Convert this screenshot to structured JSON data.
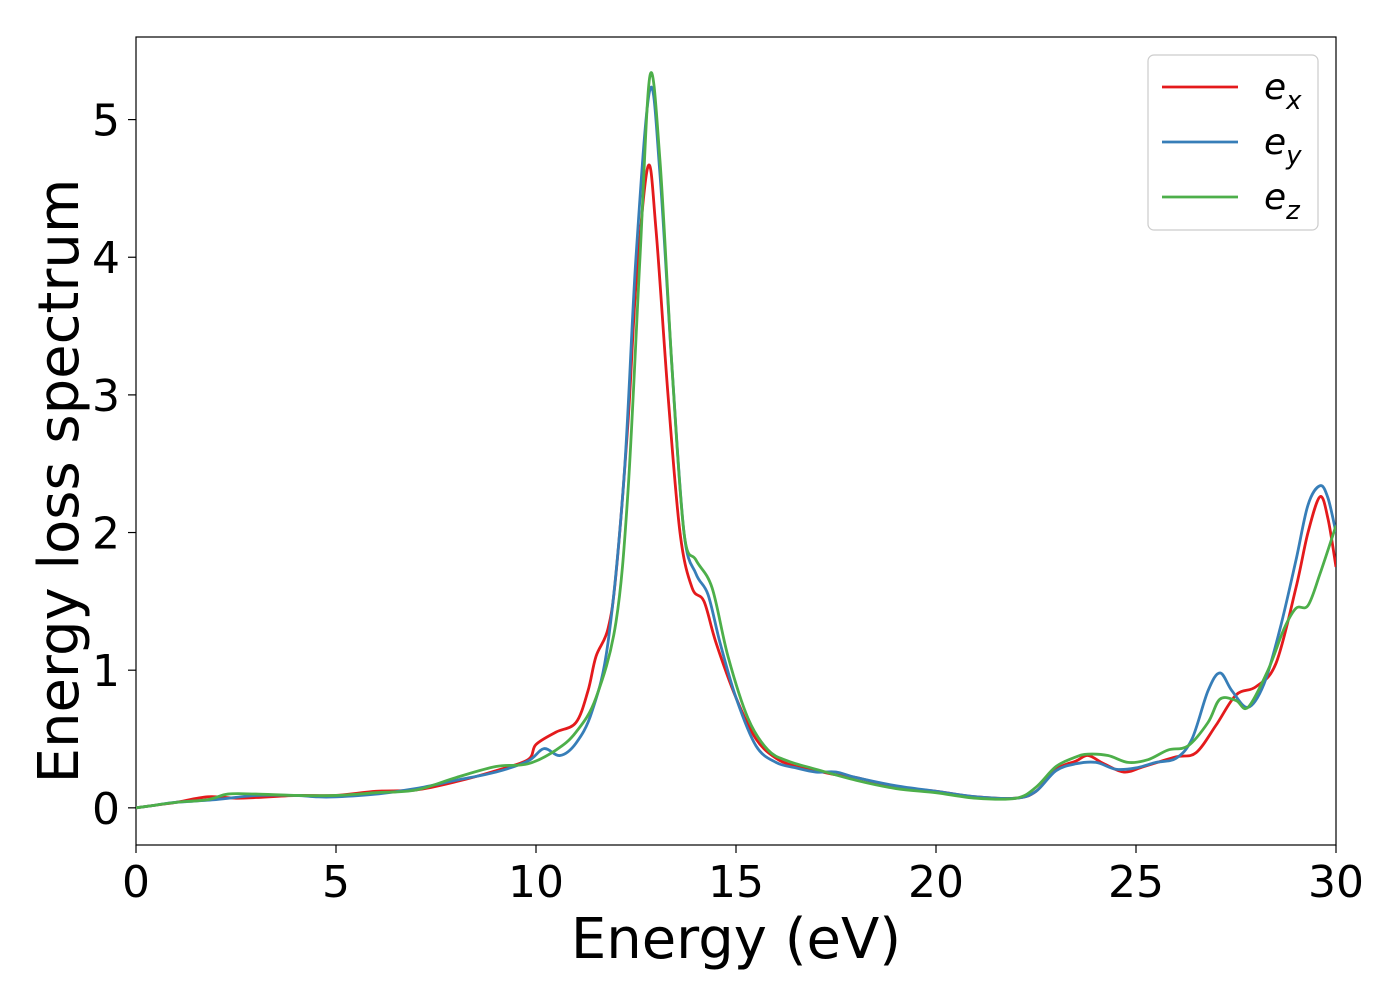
{
  "chart_data": {
    "type": "line",
    "title": "",
    "xlabel": "Energy (eV)",
    "ylabel": "Energy loss spectrum",
    "xlim": [
      0,
      30
    ],
    "ylim": [
      -0.27,
      5.6
    ],
    "xticks": [
      0,
      5,
      10,
      15,
      20,
      25,
      30
    ],
    "yticks": [
      0,
      1,
      2,
      3,
      4,
      5
    ],
    "grid": false,
    "legend_position": "top-right",
    "series": [
      {
        "name": "e",
        "sub": "x",
        "color": "#e41a1c",
        "points": [
          [
            0,
            0.0
          ],
          [
            0.5,
            0.02
          ],
          [
            1.0,
            0.04
          ],
          [
            1.8,
            0.08
          ],
          [
            2.5,
            0.07
          ],
          [
            3.0,
            0.075
          ],
          [
            4.0,
            0.09
          ],
          [
            5.0,
            0.09
          ],
          [
            6.0,
            0.12
          ],
          [
            7.0,
            0.13
          ],
          [
            8.0,
            0.19
          ],
          [
            9.0,
            0.27
          ],
          [
            9.8,
            0.35
          ],
          [
            10.0,
            0.46
          ],
          [
            10.5,
            0.55
          ],
          [
            11.0,
            0.62
          ],
          [
            11.3,
            0.85
          ],
          [
            11.5,
            1.1
          ],
          [
            11.8,
            1.3
          ],
          [
            12.0,
            1.7
          ],
          [
            12.3,
            2.8
          ],
          [
            12.5,
            3.8
          ],
          [
            12.8,
            4.66
          ],
          [
            13.0,
            4.2
          ],
          [
            13.3,
            3.0
          ],
          [
            13.6,
            2.0
          ],
          [
            13.9,
            1.6
          ],
          [
            14.2,
            1.5
          ],
          [
            14.5,
            1.2
          ],
          [
            15.0,
            0.8
          ],
          [
            15.5,
            0.5
          ],
          [
            16.0,
            0.36
          ],
          [
            16.5,
            0.3
          ],
          [
            17.0,
            0.27
          ],
          [
            17.5,
            0.24
          ],
          [
            18.0,
            0.22
          ],
          [
            19.0,
            0.15
          ],
          [
            20.0,
            0.12
          ],
          [
            21.0,
            0.08
          ],
          [
            22.0,
            0.07
          ],
          [
            22.5,
            0.12
          ],
          [
            23.0,
            0.28
          ],
          [
            23.5,
            0.34
          ],
          [
            23.8,
            0.38
          ],
          [
            24.2,
            0.32
          ],
          [
            24.7,
            0.26
          ],
          [
            25.2,
            0.3
          ],
          [
            26.0,
            0.37
          ],
          [
            26.5,
            0.4
          ],
          [
            27.0,
            0.6
          ],
          [
            27.5,
            0.82
          ],
          [
            28.0,
            0.88
          ],
          [
            28.5,
            1.05
          ],
          [
            29.0,
            1.6
          ],
          [
            29.3,
            2.0
          ],
          [
            29.6,
            2.26
          ],
          [
            29.8,
            2.1
          ],
          [
            30.0,
            1.75
          ]
        ]
      },
      {
        "name": "e",
        "sub": "y",
        "color": "#377eb8",
        "points": [
          [
            0,
            0.0
          ],
          [
            0.5,
            0.02
          ],
          [
            1.0,
            0.04
          ],
          [
            2.0,
            0.06
          ],
          [
            3.0,
            0.09
          ],
          [
            4.0,
            0.09
          ],
          [
            4.5,
            0.08
          ],
          [
            5.0,
            0.08
          ],
          [
            6.0,
            0.1
          ],
          [
            7.0,
            0.14
          ],
          [
            8.0,
            0.2
          ],
          [
            9.0,
            0.26
          ],
          [
            9.8,
            0.34
          ],
          [
            10.2,
            0.43
          ],
          [
            10.6,
            0.38
          ],
          [
            11.0,
            0.47
          ],
          [
            11.4,
            0.7
          ],
          [
            11.8,
            1.2
          ],
          [
            12.2,
            2.4
          ],
          [
            12.5,
            4.0
          ],
          [
            12.85,
            5.22
          ],
          [
            13.1,
            4.6
          ],
          [
            13.4,
            3.2
          ],
          [
            13.7,
            2.0
          ],
          [
            14.0,
            1.7
          ],
          [
            14.3,
            1.55
          ],
          [
            14.6,
            1.2
          ],
          [
            15.0,
            0.8
          ],
          [
            15.5,
            0.45
          ],
          [
            16.0,
            0.33
          ],
          [
            16.5,
            0.29
          ],
          [
            17.0,
            0.26
          ],
          [
            17.5,
            0.26
          ],
          [
            18.0,
            0.22
          ],
          [
            19.0,
            0.16
          ],
          [
            20.0,
            0.12
          ],
          [
            21.0,
            0.08
          ],
          [
            22.0,
            0.07
          ],
          [
            22.5,
            0.12
          ],
          [
            23.0,
            0.27
          ],
          [
            23.5,
            0.32
          ],
          [
            24.0,
            0.33
          ],
          [
            24.5,
            0.28
          ],
          [
            25.0,
            0.29
          ],
          [
            25.5,
            0.33
          ],
          [
            26.0,
            0.36
          ],
          [
            26.4,
            0.5
          ],
          [
            26.8,
            0.85
          ],
          [
            27.1,
            0.98
          ],
          [
            27.4,
            0.85
          ],
          [
            27.8,
            0.73
          ],
          [
            28.2,
            0.9
          ],
          [
            28.6,
            1.3
          ],
          [
            29.0,
            1.8
          ],
          [
            29.3,
            2.2
          ],
          [
            29.6,
            2.34
          ],
          [
            29.8,
            2.25
          ],
          [
            30.0,
            2.0
          ]
        ]
      },
      {
        "name": "e",
        "sub": "z",
        "color": "#4daf4a",
        "points": [
          [
            0,
            0.0
          ],
          [
            0.5,
            0.02
          ],
          [
            1.0,
            0.04
          ],
          [
            1.8,
            0.06
          ],
          [
            2.3,
            0.1
          ],
          [
            3.0,
            0.1
          ],
          [
            4.0,
            0.09
          ],
          [
            5.0,
            0.09
          ],
          [
            6.0,
            0.11
          ],
          [
            7.0,
            0.13
          ],
          [
            8.0,
            0.22
          ],
          [
            9.0,
            0.3
          ],
          [
            9.8,
            0.32
          ],
          [
            10.5,
            0.42
          ],
          [
            11.0,
            0.55
          ],
          [
            11.5,
            0.8
          ],
          [
            12.0,
            1.35
          ],
          [
            12.3,
            2.3
          ],
          [
            12.6,
            4.0
          ],
          [
            12.85,
            5.32
          ],
          [
            13.1,
            4.7
          ],
          [
            13.4,
            3.2
          ],
          [
            13.7,
            2.0
          ],
          [
            14.0,
            1.8
          ],
          [
            14.4,
            1.6
          ],
          [
            14.8,
            1.1
          ],
          [
            15.3,
            0.65
          ],
          [
            15.8,
            0.42
          ],
          [
            16.3,
            0.34
          ],
          [
            17.0,
            0.28
          ],
          [
            18.0,
            0.2
          ],
          [
            19.0,
            0.14
          ],
          [
            20.0,
            0.11
          ],
          [
            21.0,
            0.07
          ],
          [
            22.0,
            0.07
          ],
          [
            22.5,
            0.15
          ],
          [
            23.0,
            0.3
          ],
          [
            23.5,
            0.37
          ],
          [
            23.8,
            0.39
          ],
          [
            24.3,
            0.38
          ],
          [
            24.8,
            0.33
          ],
          [
            25.3,
            0.35
          ],
          [
            25.8,
            0.42
          ],
          [
            26.3,
            0.45
          ],
          [
            26.8,
            0.62
          ],
          [
            27.1,
            0.79
          ],
          [
            27.5,
            0.78
          ],
          [
            27.8,
            0.73
          ],
          [
            28.3,
            1.0
          ],
          [
            28.7,
            1.3
          ],
          [
            29.0,
            1.45
          ],
          [
            29.3,
            1.47
          ],
          [
            29.6,
            1.7
          ],
          [
            30.0,
            2.05
          ]
        ]
      }
    ]
  }
}
